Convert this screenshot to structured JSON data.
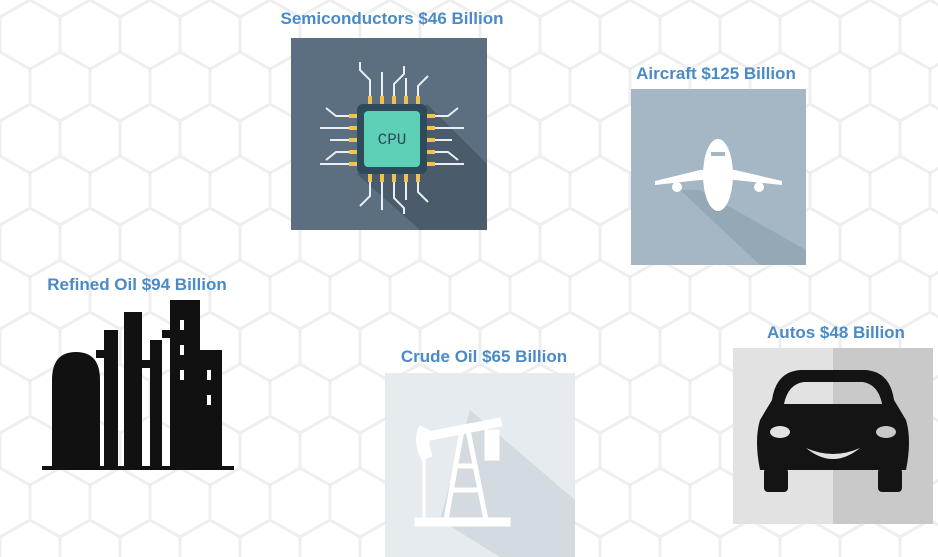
{
  "items": [
    {
      "label": "Semiconductors $46 Billion",
      "icon_text": "CPU"
    },
    {
      "label": "Aircraft $125 Billion"
    },
    {
      "label": "Refined Oil $94 Billion"
    },
    {
      "label": "Crude Oil $65 Billion"
    },
    {
      "label": "Autos $48 Billion"
    }
  ]
}
